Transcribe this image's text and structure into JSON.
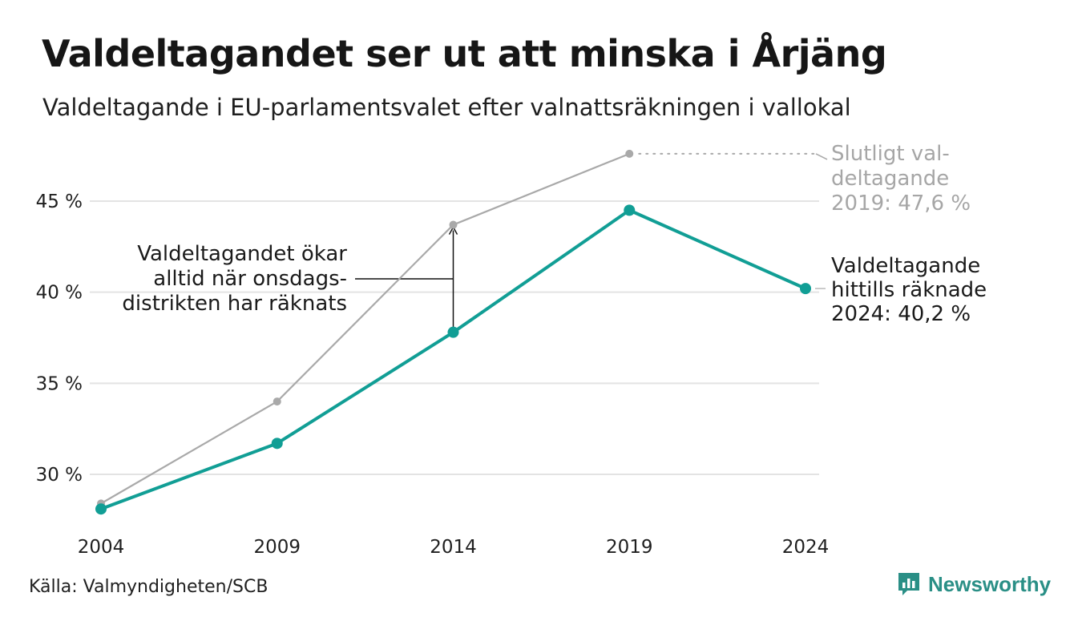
{
  "header": {
    "title": "Valdeltagandet ser ut att minska i Årjäng",
    "subtitle": "Valdeltagande i EU-parlamentsvalet efter valnattsräkningen i vallokal"
  },
  "footer": {
    "source": "Källa: Valmyndigheten/SCB",
    "brand": "Newsworthy",
    "brand_icon": "newsworthy-logo-icon"
  },
  "colors": {
    "primary": "#119e95",
    "final": "#a9a9a9",
    "grid": "#e3e3e3",
    "text": "#1a1a1a",
    "brand": "#2a8f86"
  },
  "chart_data": {
    "type": "line",
    "x": [
      2004,
      2009,
      2014,
      2019,
      2024
    ],
    "x_tick_labels": [
      "2004",
      "2009",
      "2014",
      "2019",
      "2024"
    ],
    "y_ticks": [
      30,
      35,
      40,
      45
    ],
    "y_tick_labels": [
      "30 %",
      "35 %",
      "40 %",
      "45 %"
    ],
    "ylim": [
      27.5,
      48.0
    ],
    "grid": true,
    "series": [
      {
        "key": "final",
        "values": [
          28.4,
          34.0,
          43.7,
          47.6,
          null
        ],
        "color": "#a9a9a9"
      },
      {
        "key": "counted",
        "values": [
          28.1,
          31.7,
          37.8,
          44.5,
          40.2
        ],
        "color": "#119e95"
      }
    ],
    "annotations": {
      "final_label": [
        "Slutligt val-",
        "deltagande",
        "2019: 47,6 %"
      ],
      "counted_label": [
        "Valdeltagande",
        "hittills räknade",
        "2024: 40,2 %"
      ],
      "gap_label": [
        "Valdeltagandet ökar",
        "alltid när onsdags-",
        "distrikten har räknats"
      ]
    }
  }
}
